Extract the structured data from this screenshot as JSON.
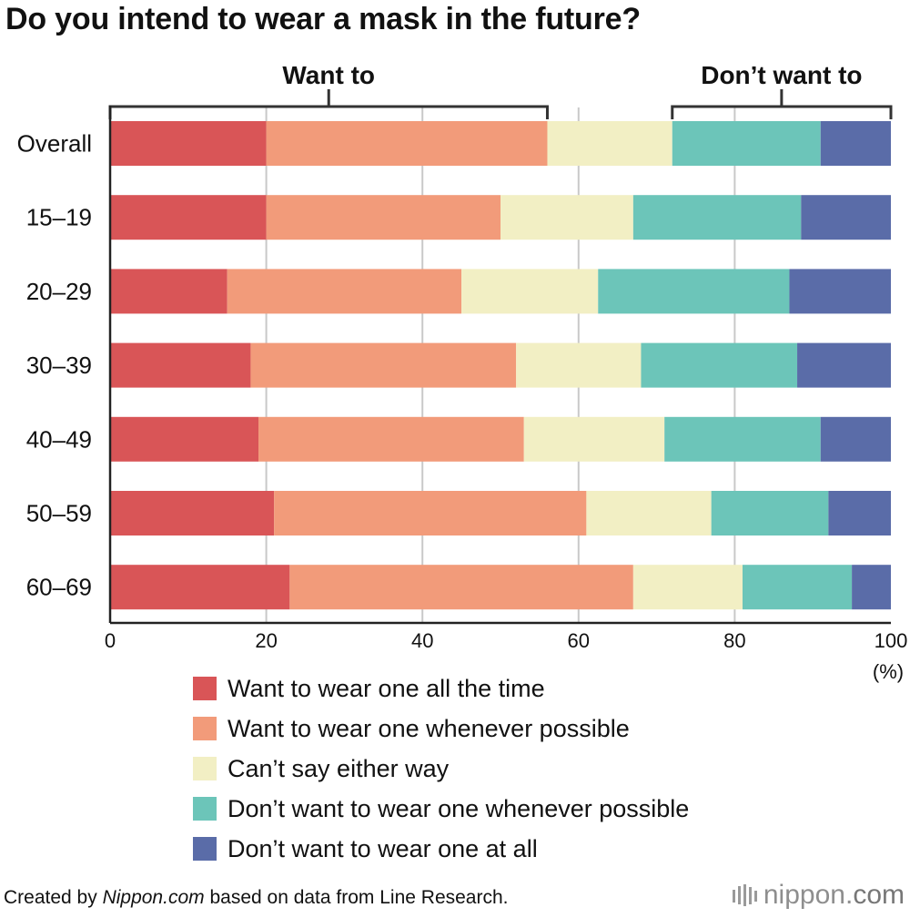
{
  "title": "Do you intend to wear a mask in the future?",
  "group_labels": {
    "want": "Want to",
    "dont_want": "Don’t want to"
  },
  "axis_unit": "(%)",
  "legend": [
    {
      "label": "Want to wear one all the time",
      "color": "#d95557"
    },
    {
      "label": "Want to wear one whenever possible",
      "color": "#f29b7a"
    },
    {
      "label": "Can’t say either way",
      "color": "#f2efc4"
    },
    {
      "label": "Don’t want to wear one whenever possible",
      "color": "#6cc5b9"
    },
    {
      "label": "Don’t want to wear one at all",
      "color": "#5a6ca8"
    }
  ],
  "footer": {
    "prefix": "Created by ",
    "source_name": "Nippon.com",
    "suffix": " based on data from Line Research."
  },
  "brand": {
    "name": "nippon.",
    "tld": "com",
    "icon": "nippon-logo-icon"
  },
  "chart_data": {
    "type": "bar",
    "orientation": "horizontal",
    "stacked": true,
    "title": "Do you intend to wear a mask in the future?",
    "categories": [
      "Overall",
      "15–19",
      "20–29",
      "30–39",
      "40–49",
      "50–59",
      "60–69"
    ],
    "series": [
      {
        "name": "Want to wear one all the time",
        "values": [
          20,
          20,
          15,
          18,
          19,
          21,
          23
        ]
      },
      {
        "name": "Want to wear one whenever possible",
        "values": [
          36,
          30,
          30,
          34,
          34,
          40,
          44
        ]
      },
      {
        "name": "Can’t say either way",
        "values": [
          16,
          17,
          17.5,
          16,
          18,
          16,
          14
        ]
      },
      {
        "name": "Don’t want to wear one whenever possible",
        "values": [
          19,
          21.5,
          24.5,
          20,
          20,
          15,
          14
        ]
      },
      {
        "name": "Don’t want to wear one at all",
        "values": [
          9,
          11.5,
          13,
          12,
          9,
          8,
          5
        ]
      }
    ],
    "xlim": [
      0,
      100
    ],
    "x_ticks": [
      0,
      20,
      40,
      60,
      80,
      100
    ],
    "xlabel": "(%)",
    "grid": true,
    "legend_position": "bottom",
    "brackets": [
      {
        "label": "Want to",
        "from": 0,
        "to": 56
      },
      {
        "label": "Don’t want to",
        "from": 72,
        "to": 100
      }
    ]
  }
}
